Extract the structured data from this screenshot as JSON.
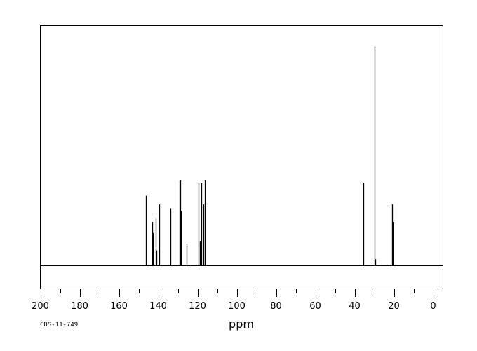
{
  "chart_data": {
    "type": "line",
    "title": "",
    "xlabel": "ppm",
    "ylabel": "",
    "xlim": [
      200,
      -5
    ],
    "x_direction": "reversed",
    "x_tick_labels": [
      "200",
      "180",
      "160",
      "140",
      "120",
      "100",
      "80",
      "60",
      "40",
      "20",
      "0"
    ],
    "y_axis_visible": false,
    "grid": false,
    "relative_intensity_max": 1.0,
    "peaks": [
      {
        "ppm": 146.3,
        "height": 0.32
      },
      {
        "ppm": 143.1,
        "height": 0.2
      },
      {
        "ppm": 142.6,
        "height": 0.15
      },
      {
        "ppm": 141.4,
        "height": 0.22
      },
      {
        "ppm": 140.9,
        "height": 0.07
      },
      {
        "ppm": 139.3,
        "height": 0.28
      },
      {
        "ppm": 133.7,
        "height": 0.26
      },
      {
        "ppm": 129.2,
        "height": 0.39
      },
      {
        "ppm": 128.8,
        "height": 0.39
      },
      {
        "ppm": 128.4,
        "height": 0.25
      },
      {
        "ppm": 125.6,
        "height": 0.1
      },
      {
        "ppm": 119.3,
        "height": 0.38
      },
      {
        "ppm": 118.9,
        "height": 0.11
      },
      {
        "ppm": 118.2,
        "height": 0.38
      },
      {
        "ppm": 116.9,
        "height": 0.28
      },
      {
        "ppm": 116.3,
        "height": 0.39
      },
      {
        "ppm": 35.6,
        "height": 0.38
      },
      {
        "ppm": 29.9,
        "height": 1.0
      },
      {
        "ppm": 29.6,
        "height": 0.03
      },
      {
        "ppm": 21.0,
        "height": 0.28
      },
      {
        "ppm": 20.6,
        "height": 0.2
      }
    ]
  },
  "footer": {
    "sample_code": "CDS-11-749"
  }
}
